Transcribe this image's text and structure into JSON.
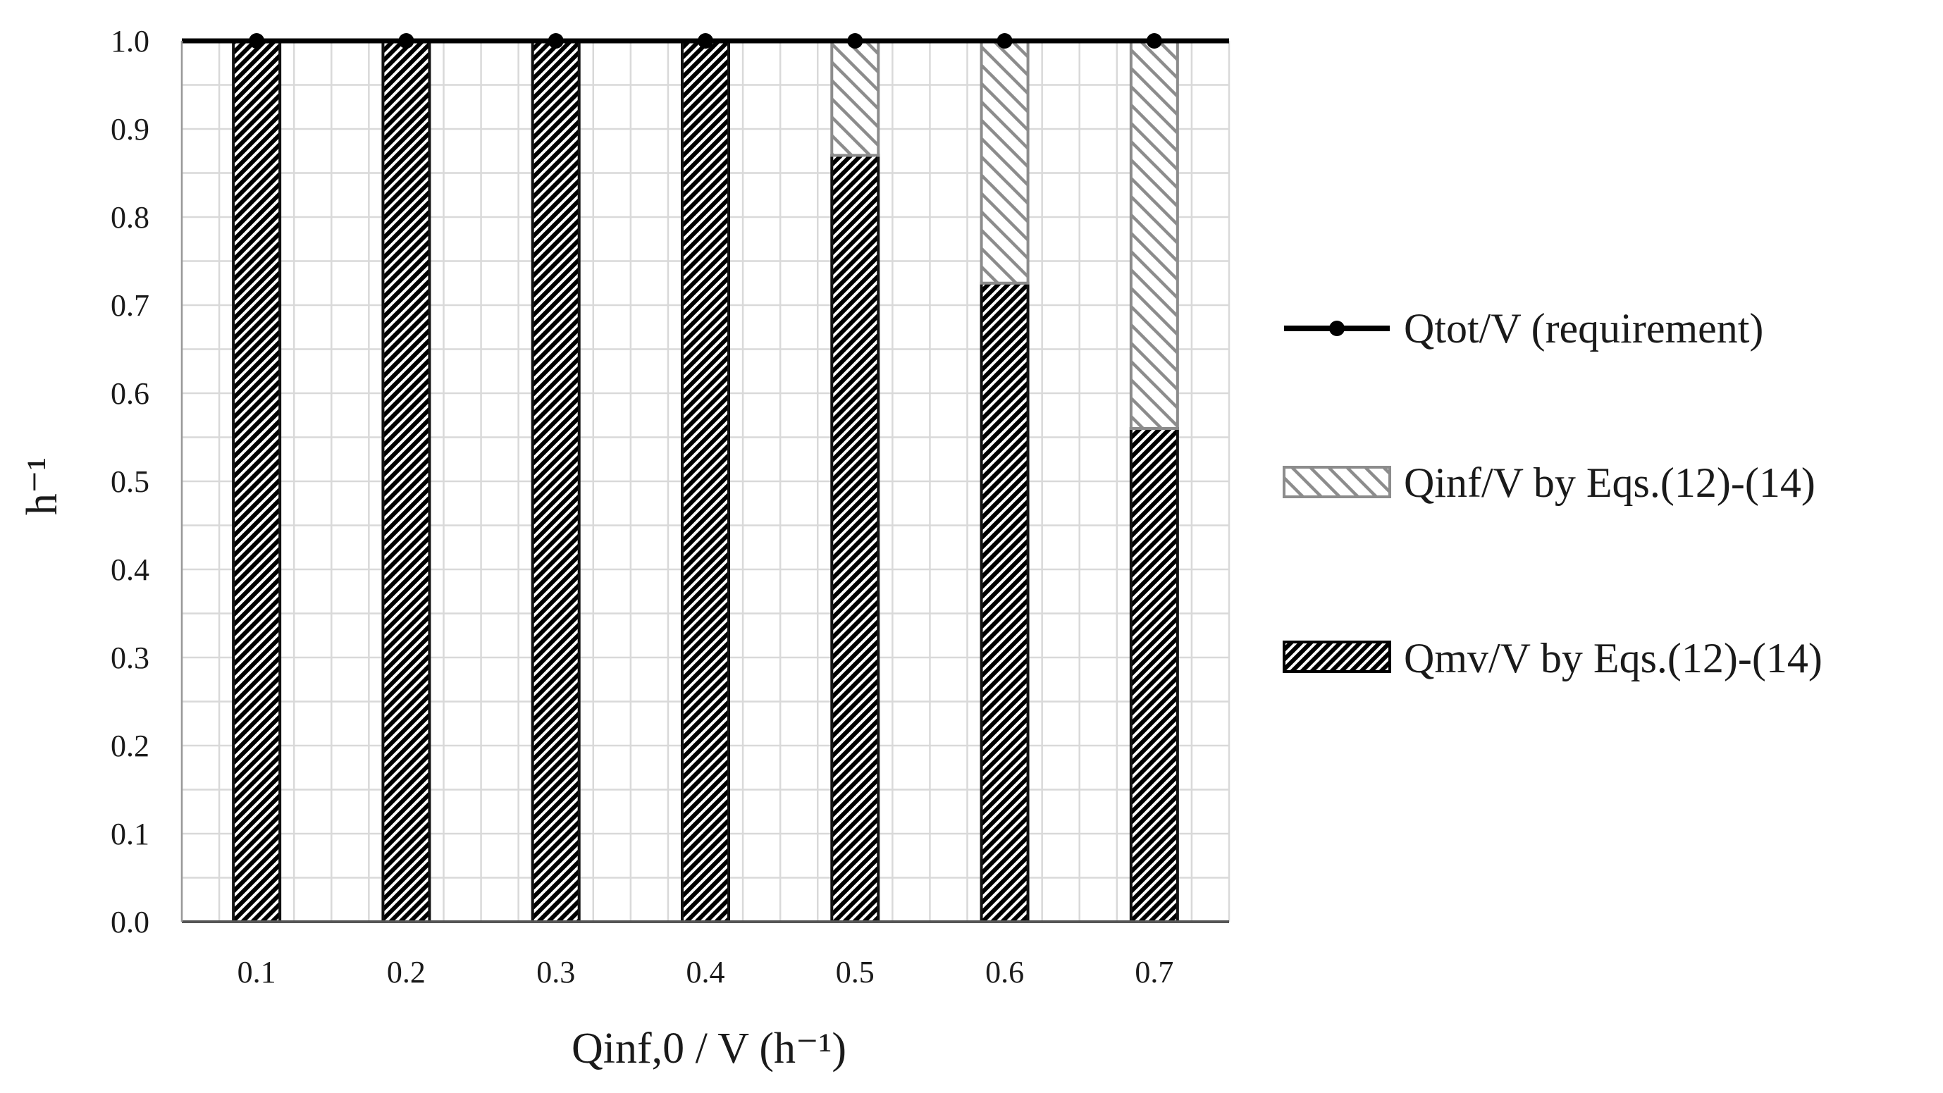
{
  "chart_data": {
    "type": "bar",
    "stacked": true,
    "title": "",
    "xlabel": "Qinf,0 / V (h⁻¹)",
    "ylabel": "h⁻¹",
    "categories": [
      "0.1",
      "0.2",
      "0.3",
      "0.4",
      "0.5",
      "0.6",
      "0.7"
    ],
    "ylim": [
      0,
      1.0
    ],
    "yticks": [
      "0.0",
      "0.1",
      "0.2",
      "0.3",
      "0.4",
      "0.5",
      "0.6",
      "0.7",
      "0.8",
      "0.9",
      "1.0"
    ],
    "grid": true,
    "legend_position": "right",
    "series": [
      {
        "name": "Qmv/V by Eqs.(12)-(14)",
        "kind": "bar",
        "pattern": "dense-hatch",
        "color": "#111111",
        "values": [
          1.0,
          1.0,
          1.0,
          1.0,
          0.87,
          0.725,
          0.56
        ]
      },
      {
        "name": "Qinf/V by Eqs.(12)-(14)",
        "kind": "bar",
        "pattern": "sparse-hatch",
        "color": "#8c8c8c",
        "values": [
          0.0,
          0.0,
          0.0,
          0.0,
          0.13,
          0.275,
          0.44
        ]
      },
      {
        "name": "Qtot/V (requirement)",
        "kind": "line",
        "marker": "circle",
        "color": "#000000",
        "values": [
          1.0,
          1.0,
          1.0,
          1.0,
          1.0,
          1.0,
          1.0
        ]
      }
    ],
    "legend_order": [
      "Qtot/V (requirement)",
      "Qinf/V by Eqs.(12)-(14)",
      "Qmv/V by Eqs.(12)-(14)"
    ]
  }
}
